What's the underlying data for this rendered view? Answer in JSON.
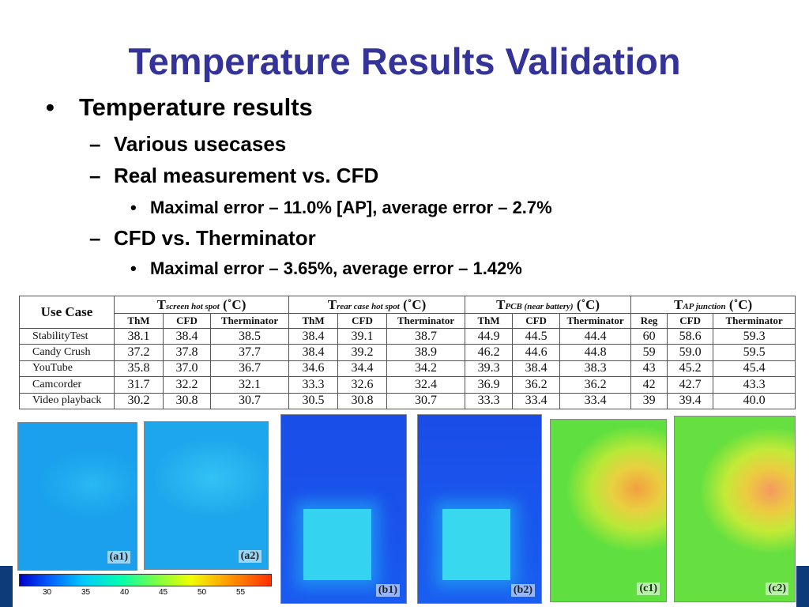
{
  "title": "Temperature Results Validation",
  "bullets": {
    "l1": "Temperature results",
    "l2a": "Various usecases",
    "l2b": "Real measurement vs. CFD",
    "l3a": "Maximal error – 11.0% [AP], average error – 2.7%",
    "l2c": "CFD vs. Therminator",
    "l3b": "Maximal error – 3.65%, average error – 1.42%",
    "bullet_char": "•",
    "dash_char": "–"
  },
  "table": {
    "use_case_header": "Use Case",
    "unit": "(˚C)",
    "groups": [
      {
        "T": "T",
        "sub": "screen hot spot",
        "cols": [
          "ThM",
          "CFD",
          "Therminator"
        ]
      },
      {
        "T": "T",
        "sub": "rear case hot spot",
        "cols": [
          "ThM",
          "CFD",
          "Therminator"
        ]
      },
      {
        "T": "T",
        "sub": "PCB (near battery)",
        "cols": [
          "ThM",
          "CFD",
          "Therminator"
        ]
      },
      {
        "T": "T",
        "sub": "AP junction",
        "cols": [
          "Reg",
          "CFD",
          "Therminator"
        ]
      }
    ],
    "rows": [
      {
        "name": "StabilityTest",
        "v": [
          "38.1",
          "38.4",
          "38.5",
          "38.4",
          "39.1",
          "38.7",
          "44.9",
          "44.5",
          "44.4",
          "60",
          "58.6",
          "59.3"
        ]
      },
      {
        "name": "Candy Crush",
        "v": [
          "37.2",
          "37.8",
          "37.7",
          "38.4",
          "39.2",
          "38.9",
          "46.2",
          "44.6",
          "44.8",
          "59",
          "59.0",
          "59.5"
        ]
      },
      {
        "name": "YouTube",
        "v": [
          "35.8",
          "37.0",
          "36.7",
          "34.6",
          "34.4",
          "34.2",
          "39.3",
          "38.4",
          "38.3",
          "43",
          "45.2",
          "45.4"
        ]
      },
      {
        "name": "Camcorder",
        "v": [
          "31.7",
          "32.2",
          "32.1",
          "33.3",
          "32.6",
          "32.4",
          "36.9",
          "36.2",
          "36.2",
          "42",
          "42.7",
          "43.3"
        ]
      },
      {
        "name": "Video playback",
        "v": [
          "30.2",
          "30.8",
          "30.7",
          "30.5",
          "30.8",
          "30.7",
          "33.3",
          "33.4",
          "33.4",
          "39",
          "39.4",
          "40.0"
        ]
      }
    ]
  },
  "panels": [
    "(a1)",
    "(a2)",
    "(b1)",
    "(b2)",
    "(c1)",
    "(c2)"
  ],
  "colorbar": {
    "ticks": [
      "30",
      "35",
      "40",
      "45",
      "50",
      "55"
    ]
  },
  "colors": {
    "title": "#333399",
    "accent_bar": "#0d3b7a"
  }
}
